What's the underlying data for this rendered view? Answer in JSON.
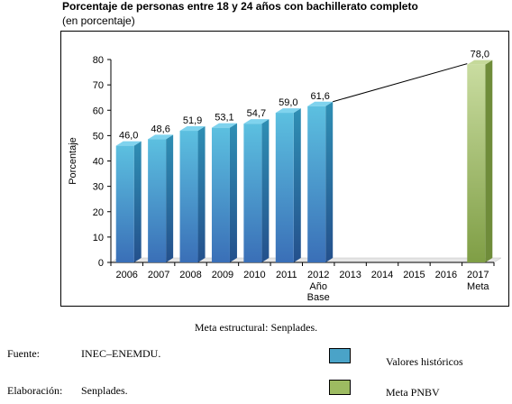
{
  "title": "Porcentaje de personas entre 18 y 24 años con bachillerato completo",
  "subtitle": "(en porcentaje)",
  "chart_data": {
    "type": "bar",
    "categories": [
      "2006",
      "2007",
      "2008",
      "2009",
      "2010",
      "2011",
      "2012",
      "2013",
      "2014",
      "2015",
      "2016",
      "2017"
    ],
    "category_sublabels": {
      "2012": [
        "Año",
        "Base"
      ],
      "2017": [
        "Meta"
      ]
    },
    "series": [
      {
        "name": "Valores históricos",
        "values": [
          46.0,
          48.6,
          51.9,
          53.1,
          54.7,
          59.0,
          61.6,
          null,
          null,
          null,
          null,
          null
        ],
        "labels": [
          "46,0",
          "48,6",
          "51,9",
          "53,1",
          "54,7",
          "59,0",
          "61,6",
          "",
          "",
          "",
          "",
          ""
        ]
      },
      {
        "name": "Meta PNBV",
        "values": [
          null,
          null,
          null,
          null,
          null,
          null,
          null,
          null,
          null,
          null,
          null,
          78.0
        ],
        "labels": [
          "",
          "",
          "",
          "",
          "",
          "",
          "",
          "",
          "",
          "",
          "",
          "78,0"
        ]
      }
    ],
    "ylabel": "Porcentaje",
    "xlabel": "",
    "ylim": [
      0,
      80
    ],
    "yticks": [
      0,
      10,
      20,
      30,
      40,
      50,
      60,
      70,
      80
    ],
    "trend_line": {
      "from": "2012",
      "to": "2017"
    },
    "colors": {
      "historic": "#4aa3c8",
      "historic_dark": "#2b6f96",
      "meta": "#9dbb61",
      "meta_dark": "#6f8c3a"
    }
  },
  "note": "Meta estructural: Senplades.",
  "footer": {
    "fuente_label": "Fuente:",
    "fuente_value": "INEC–ENEMDU.",
    "elaboracion_label": "Elaboración:",
    "elaboracion_value": "Senplades."
  },
  "legend": [
    {
      "label": "Valores históricos",
      "color": "#4aa3c8"
    },
    {
      "label": "Meta PNBV",
      "color": "#9dbb61"
    }
  ]
}
